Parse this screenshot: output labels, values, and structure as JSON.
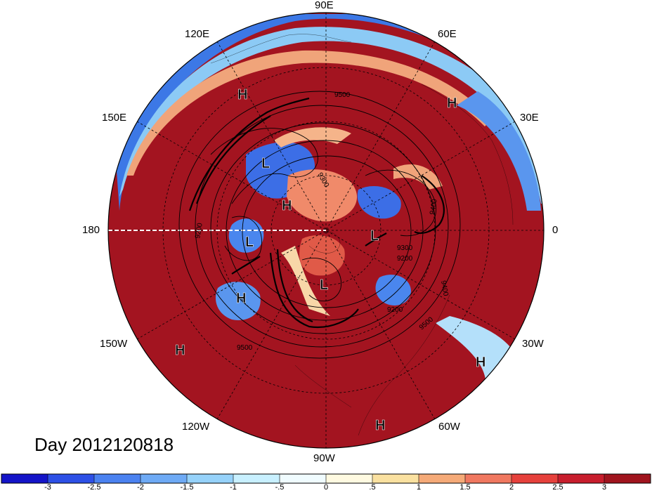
{
  "title_text": "Day 2012120818",
  "longitude_labels": {
    "top": "90E",
    "top_left": "120E",
    "top_right": "60E",
    "upper_left": "150E",
    "upper_right": "30E",
    "left": "180",
    "right": "0",
    "lower_left": "150W",
    "lower_right": "30W",
    "bottom_left": "120W",
    "bottom_right": "60W",
    "bottom": "90W"
  },
  "pressure_centers": [
    "H",
    "H",
    "L",
    "H",
    "L",
    "L",
    "H",
    "H",
    "L",
    "H",
    "H"
  ],
  "contour_labels": [
    "9500",
    "9400",
    "9300",
    "9200",
    "9500",
    "9500",
    "9200",
    "9200",
    "9300",
    "9400"
  ],
  "colorbar": {
    "ticks": [
      "-3",
      "-2.5",
      "-2",
      "-1.5",
      "-1",
      "-.5",
      "0",
      ".5",
      "1",
      "1.5",
      "2",
      "2.5",
      "3"
    ],
    "colors": [
      "#1414c8",
      "#2d50e6",
      "#4b82f0",
      "#6eaaf5",
      "#96d2fa",
      "#c8f0ff",
      "#f0fcff",
      "#fffae1",
      "#fae1a0",
      "#f5aa78",
      "#f07860",
      "#e6413c",
      "#c81e2d",
      "#a0141e"
    ]
  },
  "colors": {
    "warm_ring": "#a31420",
    "warm_mid": "#d0302e",
    "cool": "#3c6ee6",
    "graticule": "#000000"
  }
}
